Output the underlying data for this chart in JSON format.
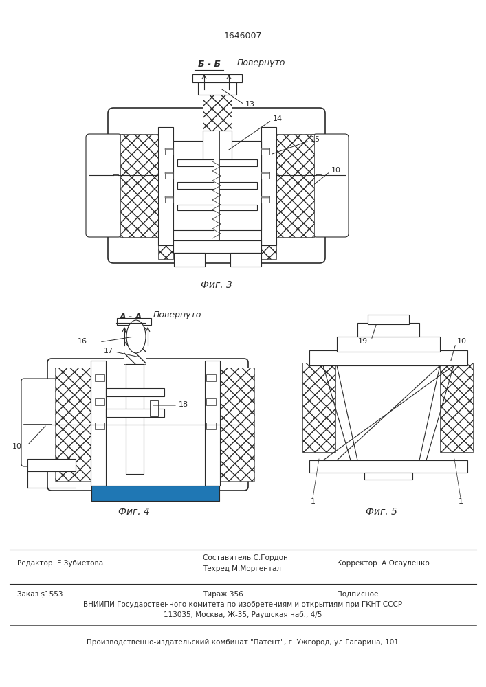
{
  "patent_number": "1646007",
  "bg_color": "#ffffff",
  "line_color": "#2a2a2a",
  "fig_width": 7.07,
  "fig_height": 10.0,
  "fig3_caption": "Фиг. 3",
  "fig4_caption": "Фиг. 4",
  "fig5_caption": "Фиг. 5",
  "fig3_section": "Б - Б",
  "fig3_section2": "Повернуто",
  "fig4_section": "А - А",
  "fig4_section2": "Повернуто",
  "footer_editor": "Редактор  Е.Зубиетова",
  "footer_composer_top": "Составитель С.Гордон",
  "footer_composer_bot": "Техред М.Моргентал",
  "footer_corrector": "Корректор  А.Осауленко",
  "footer_order": "Заказ ș1553",
  "footer_circulation": "Тираж 356",
  "footer_subscription": "Подписное",
  "footer_vniiipi": "ВНИИПИ Государственного комитета по изобретениям и открытиям при ГКНТ СССР",
  "footer_address": "113035, Москва, Ж-35, Раушская наб., 4/5",
  "footer_production": "Производственно-издательский комбинат \"Патент\", г. Ужгород, ул.Гагарина, 101"
}
